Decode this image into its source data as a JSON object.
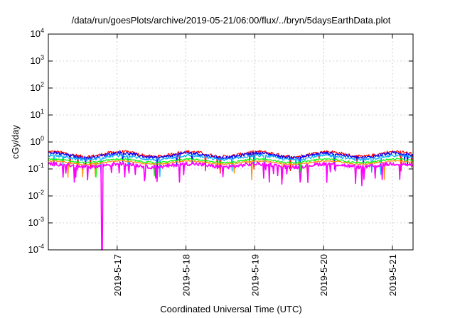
{
  "chart_data": {
    "type": "line",
    "title": "/data/run/goesPlots/archive/2019-05-21/06:00/flux/../bryn/5daysEarthData.plot",
    "xlabel": "Coordinated Universal Time (UTC)",
    "ylabel": "cGy/day",
    "yscale": "log",
    "ylim": [
      0.0001,
      10000
    ],
    "xlim_days": [
      0,
      5.3
    ],
    "grid": true,
    "y_ticks": [
      {
        "value": 0.0001,
        "base": "10",
        "exp": "-4"
      },
      {
        "value": 0.001,
        "base": "10",
        "exp": "-3"
      },
      {
        "value": 0.01,
        "base": "10",
        "exp": "-2"
      },
      {
        "value": 0.1,
        "base": "10",
        "exp": "-1"
      },
      {
        "value": 1,
        "base": "10",
        "exp": "0"
      },
      {
        "value": 10,
        "base": "10",
        "exp": "1"
      },
      {
        "value": 100,
        "base": "10",
        "exp": "2"
      },
      {
        "value": 1000,
        "base": "10",
        "exp": "3"
      },
      {
        "value": 10000,
        "base": "10",
        "exp": "4"
      }
    ],
    "x_ticks": [
      {
        "label": "2019-5-17",
        "day": 1.0
      },
      {
        "label": "2019-5-18",
        "day": 2.0
      },
      {
        "label": "2019-5-19",
        "day": 3.0
      },
      {
        "label": "2019-5-20",
        "day": 4.0
      },
      {
        "label": "2019-5-21",
        "day": 5.0
      }
    ],
    "series": [
      {
        "color": "#ff0000",
        "base": 0.33,
        "amp": 0.3,
        "noise": 0.12,
        "spikes": 0.02
      },
      {
        "color": "#0000ff",
        "base": 0.3,
        "amp": 0.28,
        "noise": 0.12,
        "spikes": 0.02
      },
      {
        "color": "#00aaff",
        "base": 0.25,
        "amp": 0.25,
        "noise": 0.1,
        "spikes": 0.02
      },
      {
        "color": "#00ff00",
        "base": 0.19,
        "amp": 0.22,
        "noise": 0.06,
        "spikes": 0.01
      },
      {
        "color": "#ff8c00",
        "base": 0.165,
        "amp": 0.2,
        "noise": 0.05,
        "spikes": 0.01
      },
      {
        "color": "#ff00ff",
        "base": 0.13,
        "amp": 0.2,
        "noise": 0.14,
        "spikes": 0.06,
        "dropout_day": 0.78
      }
    ]
  }
}
